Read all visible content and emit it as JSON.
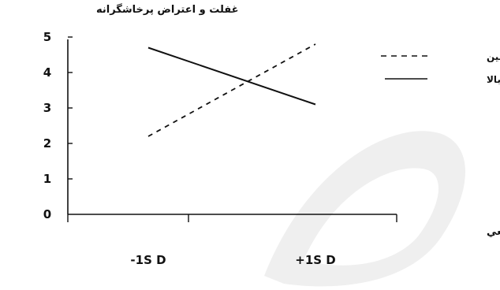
{
  "chart_data": {
    "type": "line",
    "ylabel": "غفلت و اعتراض پرخاشگرانه",
    "xlabel": "بي‌عدالتي توزيعي",
    "categories": [
      "-1S D",
      "+1S D"
    ],
    "y_ticks": [
      "0",
      "1",
      "2",
      "3",
      "4",
      "5"
    ],
    "ylim": [
      0,
      5
    ],
    "series": [
      {
        "name": "عاطفه مثبت پائين",
        "style": "dashed",
        "values": [
          2.2,
          4.8
        ]
      },
      {
        "name": "عاطفه مثبت بالا",
        "style": "solid",
        "values": [
          4.7,
          3.1
        ]
      }
    ],
    "legend_placement": "top-right",
    "grid": false
  },
  "colors": {
    "line": "#111111",
    "watermark": "#e8e8e8"
  }
}
